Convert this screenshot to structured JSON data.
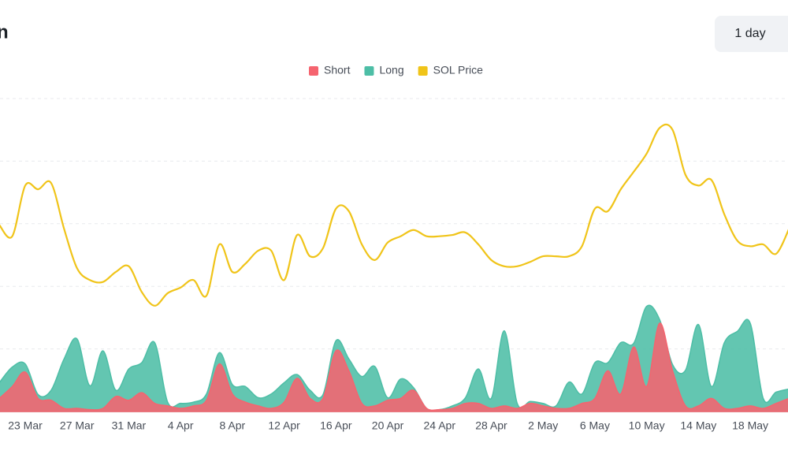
{
  "chart_data": {
    "type": "stacked-area-line",
    "title": "n",
    "range_button": "1 day",
    "categories": [
      null,
      null,
      "23 Mar",
      null,
      null,
      null,
      "27 Mar",
      null,
      null,
      null,
      "31 Mar",
      null,
      null,
      null,
      "4 Apr",
      null,
      null,
      null,
      "8 Apr",
      null,
      null,
      null,
      "12 Apr",
      null,
      null,
      null,
      "16 Apr",
      null,
      null,
      null,
      "20 Apr",
      null,
      null,
      null,
      "24 Apr",
      null,
      null,
      null,
      "28 Apr",
      null,
      null,
      null,
      "2 May",
      null,
      null,
      null,
      "6 May",
      null,
      null,
      null,
      "10 May",
      null,
      null,
      null,
      "14 May",
      null,
      null,
      null,
      "18 May",
      null,
      null,
      null
    ],
    "series": [
      {
        "name": "Short",
        "color": "#f5646f",
        "kind": "area",
        "values": [
          0.21,
          0.4,
          0.63,
          0.21,
          0.18,
          0.05,
          0.05,
          0.03,
          0.05,
          0.24,
          0.18,
          0.3,
          0.13,
          0.09,
          0.05,
          0.09,
          0.18,
          0.76,
          0.28,
          0.15,
          0.09,
          0.05,
          0.15,
          0.53,
          0.21,
          0.21,
          0.97,
          0.65,
          0.13,
          0.09,
          0.18,
          0.21,
          0.34,
          0.05,
          0.03,
          0.05,
          0.13,
          0.13,
          0.05,
          0.09,
          0.05,
          0.13,
          0.09,
          0.05,
          0.05,
          0.13,
          0.21,
          0.65,
          0.28,
          1.03,
          0.4,
          1.41,
          0.65,
          0.09,
          0.09,
          0.21,
          0.05,
          0.05,
          0.09,
          0.05,
          0.13,
          0.21
        ]
      },
      {
        "name": "Long",
        "color": "#4dbea6",
        "kind": "area",
        "values": [
          0.25,
          0.31,
          0.13,
          0.06,
          0.16,
          0.79,
          1.11,
          0.38,
          0.92,
          0.1,
          0.5,
          0.48,
          0.97,
          0.06,
          0.08,
          0.06,
          0.1,
          0.18,
          0.15,
          0.25,
          0.13,
          0.23,
          0.31,
          0.06,
          0.13,
          0.06,
          0.16,
          0.19,
          0.43,
          0.63,
          0.04,
          0.31,
          0.04,
          0.0,
          0.0,
          0.04,
          0.09,
          0.55,
          0.16,
          1.2,
          0.08,
          0.03,
          0.04,
          0.04,
          0.42,
          0.15,
          0.57,
          0.13,
          0.82,
          0.06,
          1.28,
          0.06,
          0.1,
          0.57,
          1.3,
          0.19,
          1.05,
          1.23,
          1.32,
          0.16,
          0.18,
          0.15
        ]
      },
      {
        "name": "SOL Price",
        "color": "#f0c419",
        "kind": "line",
        "values": [
          2.98,
          2.8,
          3.61,
          3.55,
          3.65,
          2.92,
          2.29,
          2.1,
          2.07,
          2.23,
          2.32,
          1.91,
          1.69,
          1.89,
          1.98,
          2.1,
          1.85,
          2.67,
          2.23,
          2.36,
          2.57,
          2.57,
          2.1,
          2.82,
          2.48,
          2.61,
          3.24,
          3.2,
          2.67,
          2.42,
          2.7,
          2.8,
          2.9,
          2.8,
          2.8,
          2.82,
          2.86,
          2.67,
          2.42,
          2.32,
          2.32,
          2.39,
          2.48,
          2.48,
          2.48,
          2.64,
          3.24,
          3.2,
          3.55,
          3.83,
          4.12,
          4.53,
          4.5,
          3.78,
          3.61,
          3.7,
          3.15,
          2.73,
          2.64,
          2.67,
          2.52,
          2.92
        ]
      }
    ],
    "ylim": [
      0,
      5
    ],
    "grid": true
  }
}
